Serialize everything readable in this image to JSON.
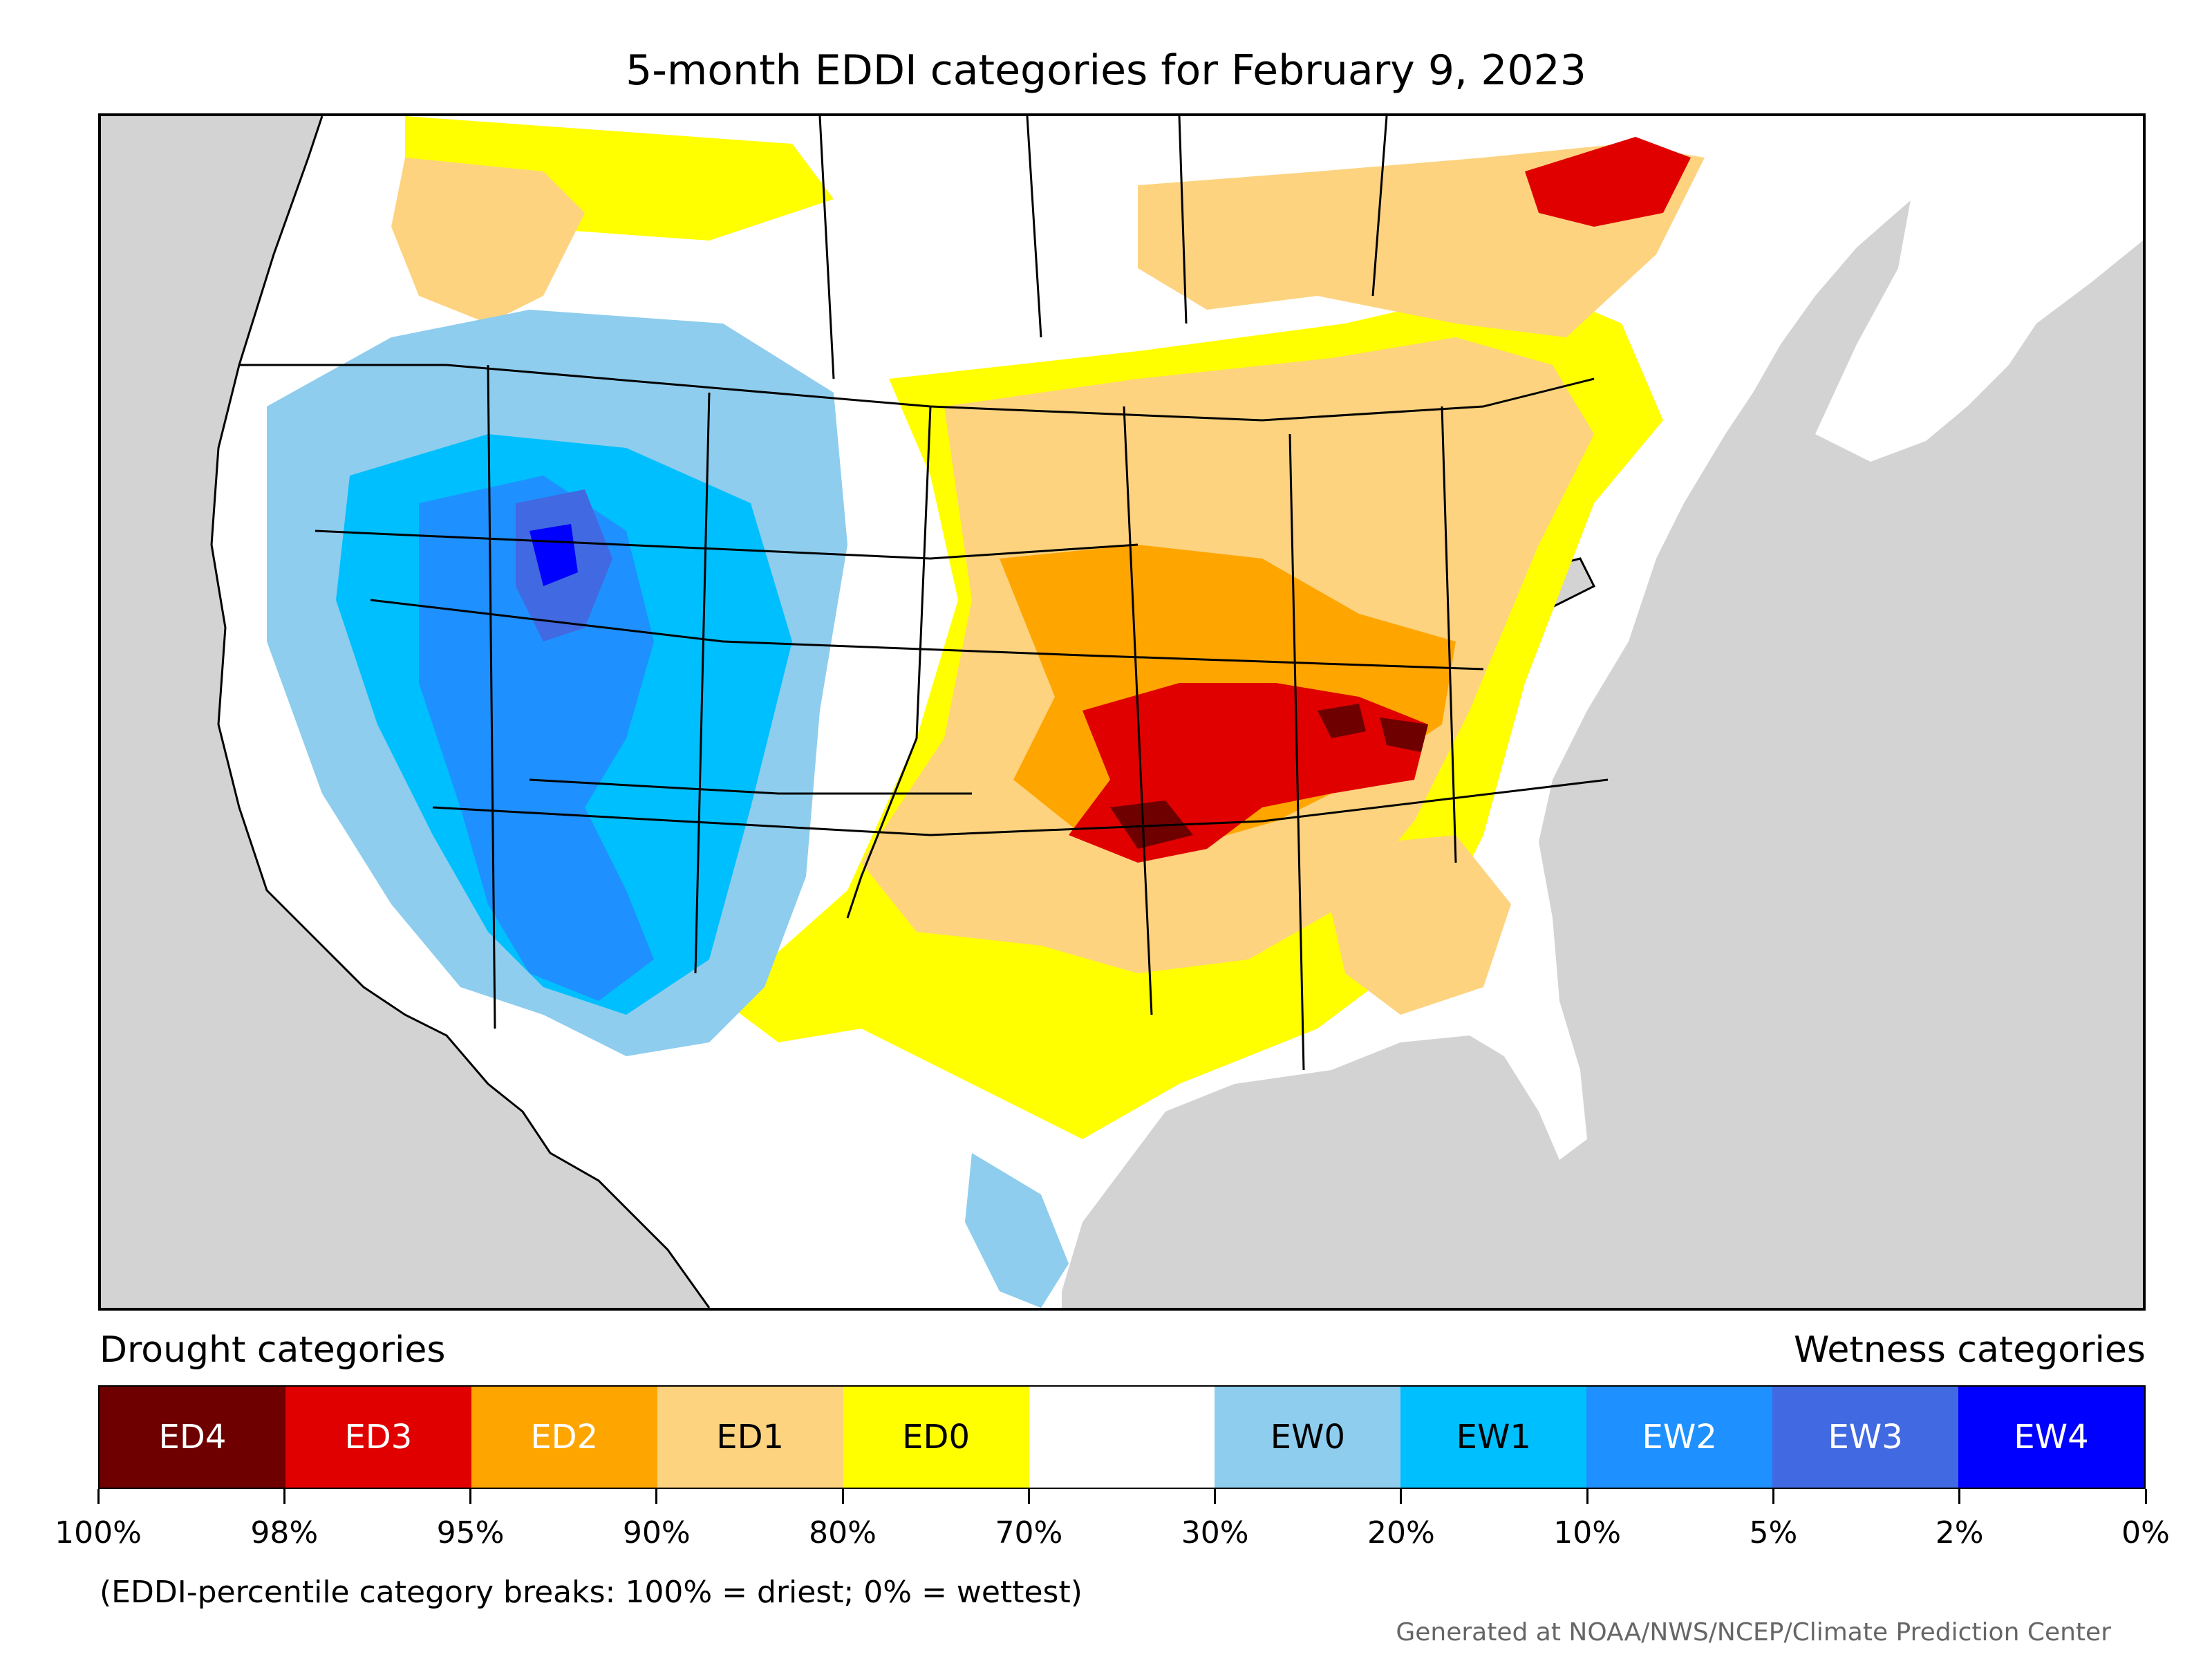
{
  "title": "5-month EDDI categories for February 9, 2023",
  "legend": {
    "drought_heading": "Drought categories",
    "wetness_heading": "Wetness categories",
    "categories": [
      {
        "label": "ED4",
        "color": "#6e0000",
        "text_color": "#ffffff"
      },
      {
        "label": "ED3",
        "color": "#e00000",
        "text_color": "#ffffff"
      },
      {
        "label": "ED2",
        "color": "#ffa500",
        "text_color": "#ffffff"
      },
      {
        "label": "ED1",
        "color": "#fdd37f",
        "text_color": "#000000"
      },
      {
        "label": "ED0",
        "color": "#ffff00",
        "text_color": "#000000"
      },
      {
        "label": "",
        "color": "#ffffff",
        "text_color": "#000000"
      },
      {
        "label": "EW0",
        "color": "#8ecdee",
        "text_color": "#000000"
      },
      {
        "label": "EW1",
        "color": "#00bfff",
        "text_color": "#000000"
      },
      {
        "label": "EW2",
        "color": "#1e90ff",
        "text_color": "#ffffff"
      },
      {
        "label": "EW3",
        "color": "#4169e1",
        "text_color": "#ffffff"
      },
      {
        "label": "EW4",
        "color": "#0000ff",
        "text_color": "#ffffff"
      }
    ],
    "breaks": [
      "100%",
      "98%",
      "95%",
      "90%",
      "80%",
      "70%",
      "30%",
      "20%",
      "10%",
      "5%",
      "2%",
      "0%"
    ]
  },
  "note": "(EDDI-percentile category breaks: 100% = driest; 0% = wettest)",
  "credit": "Generated at NOAA/NWS/NCEP/Climate Prediction Center",
  "map_colors": {
    "ocean": "#d3d3d3",
    "land": "#ffffff",
    "ED4": "#6e0000",
    "ED3": "#e00000",
    "ED2": "#ffa500",
    "ED1": "#fdd37f",
    "ED0": "#ffff00",
    "EW0": "#8ecdee",
    "EW1": "#00bfff",
    "EW2": "#1e90ff",
    "EW3": "#4169e1",
    "EW4": "#0000ff"
  }
}
